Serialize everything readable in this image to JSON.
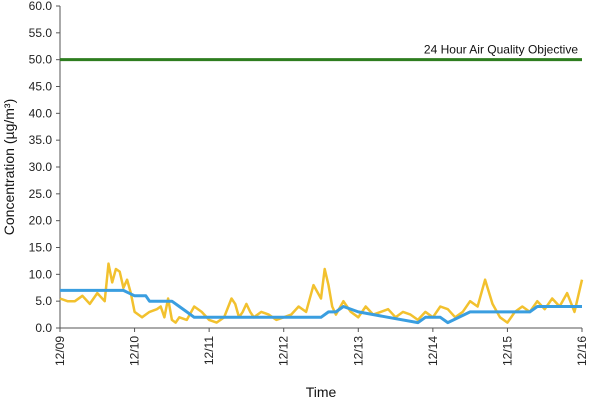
{
  "chart_data": {
    "type": "line",
    "xlabel": "Time",
    "ylabel": "Concentration (µg/m³)",
    "ylim": [
      0,
      60
    ],
    "y_ticks": [
      "0.0",
      "5.0",
      "10.0",
      "15.0",
      "20.0",
      "25.0",
      "30.0",
      "35.0",
      "40.0",
      "45.0",
      "50.0",
      "55.0",
      "60.0"
    ],
    "x_tick_labels": [
      "12/09",
      "12/10",
      "12/11",
      "12/12",
      "12/13",
      "12/14",
      "12/15",
      "12/16"
    ],
    "grid": false,
    "objective": {
      "label": "24 Hour Air Quality Objective",
      "value": 50,
      "color": "#2e7d1f"
    },
    "series": [
      {
        "color": "#f2c12e",
        "x": [
          0,
          0.1,
          0.2,
          0.3,
          0.4,
          0.5,
          0.6,
          0.65,
          0.7,
          0.75,
          0.8,
          0.85,
          0.9,
          0.95,
          1.0,
          1.1,
          1.2,
          1.3,
          1.35,
          1.4,
          1.45,
          1.5,
          1.55,
          1.6,
          1.7,
          1.8,
          1.9,
          2.0,
          2.1,
          2.2,
          2.3,
          2.35,
          2.4,
          2.45,
          2.5,
          2.55,
          2.6,
          2.7,
          2.8,
          2.9,
          3.0,
          3.1,
          3.2,
          3.3,
          3.4,
          3.5,
          3.55,
          3.6,
          3.65,
          3.7,
          3.8,
          3.9,
          4.0,
          4.1,
          4.2,
          4.3,
          4.4,
          4.5,
          4.6,
          4.7,
          4.8,
          4.9,
          5.0,
          5.1,
          5.2,
          5.3,
          5.4,
          5.5,
          5.6,
          5.7,
          5.8,
          5.9,
          6.0,
          6.1,
          6.2,
          6.3,
          6.4,
          6.5,
          6.6,
          6.7,
          6.8,
          6.9,
          7.0
        ],
        "values": [
          5.5,
          5.0,
          5.0,
          6.0,
          4.5,
          6.5,
          5.0,
          12.0,
          8.5,
          11.0,
          10.5,
          7.5,
          9.0,
          6.5,
          3.0,
          2.0,
          3.0,
          3.5,
          4.0,
          2.0,
          5.5,
          1.5,
          1.0,
          2.0,
          1.5,
          4.0,
          3.0,
          1.5,
          1.0,
          2.0,
          5.5,
          4.5,
          2.0,
          3.0,
          4.5,
          3.0,
          2.0,
          3.0,
          2.5,
          1.5,
          2.0,
          2.5,
          4.0,
          3.0,
          8.0,
          5.5,
          11.0,
          8.0,
          4.0,
          2.5,
          5.0,
          3.0,
          2.0,
          4.0,
          2.5,
          3.0,
          3.5,
          2.0,
          3.0,
          2.5,
          1.5,
          3.0,
          2.0,
          4.0,
          3.5,
          2.0,
          3.0,
          5.0,
          4.0,
          9.0,
          4.5,
          2.0,
          1.0,
          3.0,
          4.0,
          3.0,
          5.0,
          3.5,
          5.5,
          4.0,
          6.5,
          3.0,
          9.0
        ]
      },
      {
        "color": "#3a9ee0",
        "x": [
          0,
          0.05,
          0.8,
          0.85,
          1.0,
          1.15,
          1.2,
          1.5,
          1.6,
          1.7,
          1.8,
          1.85,
          2.0,
          2.2,
          2.4,
          3.0,
          3.5,
          3.6,
          3.7,
          3.8,
          4.0,
          4.4,
          4.8,
          4.9,
          5.1,
          5.2,
          5.5,
          5.6,
          6.0,
          6.3,
          6.4,
          7.0
        ],
        "values": [
          7,
          7,
          7,
          7,
          6,
          6,
          5,
          5,
          4,
          3,
          2,
          2,
          2,
          2,
          2,
          2,
          2,
          3,
          3,
          4,
          3,
          2,
          1,
          2,
          2,
          1,
          3,
          3,
          3,
          3,
          4,
          4
        ]
      }
    ]
  }
}
